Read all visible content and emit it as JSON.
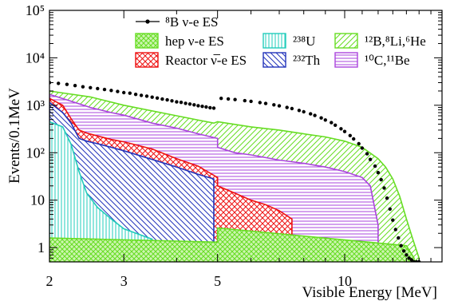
{
  "chart_data": {
    "type": "area",
    "stacked": true,
    "title": "",
    "xlabel": "Visible Energy [MeV]",
    "ylabel": "Events/0.1MeV",
    "x_scale": "log",
    "y_scale": "log",
    "xlim": [
      2,
      17
    ],
    "ylim": [
      0.5,
      100000
    ],
    "x_ticks": [
      2,
      3,
      5,
      10
    ],
    "x_tick_labels": [
      "2",
      "3",
      "5",
      "10"
    ],
    "y_ticks": [
      1,
      10,
      100,
      1000,
      10000,
      100000
    ],
    "y_tick_labels": [
      "1",
      "10",
      "10²",
      "10³",
      "10⁴",
      "10⁵"
    ],
    "grid": false,
    "legend_position": "top",
    "legend": [
      {
        "key": "b8",
        "label": "⁸B ν-e ES"
      },
      {
        "key": "hep",
        "label": "hep ν-e ES"
      },
      {
        "key": "reactor",
        "label": "Reactor ν̅-e ES"
      },
      {
        "key": "u238",
        "label": "²³⁸U"
      },
      {
        "key": "th232",
        "label": "²³²Th"
      },
      {
        "key": "cosmo1",
        "label": "¹²B,⁸Li,⁶He"
      },
      {
        "key": "cosmo2",
        "label": "¹⁰C,¹¹Be"
      }
    ],
    "colors": {
      "b8": "#000000",
      "hep": "#66dd22",
      "reactor": "#ee1111",
      "u238": "#22ccbb",
      "th232": "#2233bb",
      "cosmo1": "#66dd22",
      "cosmo2": "#aa44dd"
    },
    "stack_tops": {
      "hep": {
        "x": [
          2.0,
          5.0,
          5.0,
          14.0,
          14.6
        ],
        "y": [
          1.6,
          1.3,
          2.6,
          1.1,
          0.6
        ]
      },
      "u238": {
        "x": [
          2.0,
          2.15,
          2.25,
          2.35,
          2.45,
          2.6,
          2.8,
          3.0,
          3.5
        ],
        "y": [
          450,
          350,
          150,
          40,
          14,
          7,
          4,
          2.5,
          1.5
        ]
      },
      "th232": {
        "x": [
          2.0,
          2.15,
          2.25,
          2.35,
          2.45,
          2.6,
          2.8,
          3.0,
          3.5,
          4.0,
          4.5,
          4.9
        ],
        "y": [
          1150,
          700,
          420,
          200,
          175,
          155,
          130,
          110,
          72,
          50,
          35,
          28
        ]
      },
      "reactor": {
        "x": [
          2.0,
          2.15,
          2.25,
          2.35,
          2.45,
          2.6,
          2.8,
          3.0,
          3.5,
          4.0,
          4.5,
          5.0,
          5.0,
          5.5,
          6.0,
          6.5,
          7.0,
          7.5
        ],
        "y": [
          1400,
          1000,
          520,
          300,
          260,
          225,
          190,
          170,
          120,
          75,
          52,
          30,
          20,
          14,
          10,
          8,
          6,
          4
        ]
      },
      "cosmo2": {
        "x": [
          2.0,
          2.2,
          2.5,
          2.8,
          3.0,
          3.5,
          4.0,
          4.5,
          5.0,
          5.0,
          5.5,
          6.0,
          7.0,
          8.0,
          9.0,
          10.0,
          11.0,
          11.5,
          12.0
        ],
        "y": [
          1700,
          1300,
          900,
          700,
          620,
          420,
          330,
          250,
          200,
          130,
          100,
          90,
          70,
          60,
          50,
          40,
          30,
          20,
          3
        ]
      },
      "cosmo1": {
        "x": [
          2.0,
          2.5,
          3.0,
          4.0,
          4.9,
          5.0,
          6.0,
          7.0,
          8.0,
          9.0,
          10.0,
          11.0,
          12.0,
          12.5,
          13.0,
          13.5,
          14.0,
          14.5,
          15.0
        ],
        "y": [
          2000,
          1500,
          1000,
          600,
          420,
          450,
          350,
          300,
          250,
          215,
          175,
          130,
          75,
          50,
          28,
          12,
          4,
          1.5,
          0.6
        ]
      }
    },
    "series": [
      {
        "key": "b8",
        "name": "⁸B ν-e ES",
        "kind": "points",
        "x": [
          2.0,
          2.1,
          2.2,
          2.3,
          2.4,
          2.5,
          2.6,
          2.7,
          2.8,
          2.9,
          3.0,
          3.1,
          3.2,
          3.3,
          3.4,
          3.5,
          3.6,
          3.7,
          3.8,
          3.9,
          4.0,
          4.1,
          4.2,
          4.3,
          4.4,
          4.5,
          4.6,
          4.7,
          4.8,
          4.9,
          5.1,
          5.3,
          5.5,
          5.8,
          6.0,
          6.3,
          6.5,
          6.8,
          7.0,
          7.3,
          7.5,
          7.8,
          8.0,
          8.3,
          8.5,
          8.8,
          9.0,
          9.3,
          9.5,
          9.8,
          10.0,
          10.3,
          10.5,
          10.8,
          11.0,
          11.3,
          11.5,
          11.8,
          12.0,
          12.2,
          12.4,
          12.6,
          12.8,
          13.0,
          13.2,
          13.4,
          13.6,
          13.8,
          14.0,
          14.2,
          14.4,
          14.6,
          14.8,
          15.0
        ],
        "y": [
          3000,
          2900,
          2750,
          2600,
          2450,
          2350,
          2250,
          2150,
          2050,
          1950,
          1850,
          1800,
          1700,
          1620,
          1560,
          1480,
          1420,
          1350,
          1300,
          1240,
          1180,
          1150,
          1100,
          1060,
          1020,
          980,
          950,
          920,
          890,
          870,
          1400,
          1360,
          1320,
          1250,
          1210,
          1140,
          1090,
          1020,
          970,
          900,
          850,
          780,
          730,
          660,
          610,
          540,
          490,
          430,
          380,
          320,
          280,
          230,
          195,
          155,
          125,
          95,
          72,
          52,
          38,
          27,
          18,
          11,
          6.5,
          3.8,
          2.4,
          1.6,
          1.1,
          0.85,
          0.7,
          0.6,
          0.55,
          0.5,
          0.5,
          0.5
        ]
      }
    ]
  }
}
